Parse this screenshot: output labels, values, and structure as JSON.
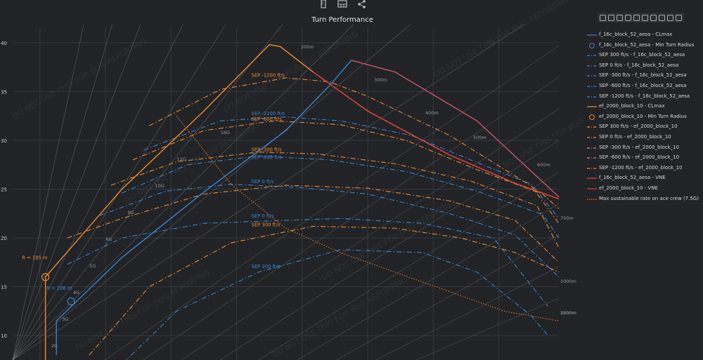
{
  "toolbar": {
    "icons": [
      "ruler-icon",
      "calculator-icon",
      "share-icon"
    ]
  },
  "modebar": {
    "icons": [
      "camera-icon",
      "zoom-icon",
      "pan-icon",
      "box-select-icon",
      "lasso-icon",
      "zoom-in-icon",
      "zoom-out-icon",
      "autoscale-icon",
      "home-icon",
      "plotly-logo-icon"
    ]
  },
  "colors": {
    "background": "#212327",
    "grid": "#34373c",
    "f16": "#3d83c8",
    "ef2000": "#f08a2c",
    "f16_vne": "#cf4a5a",
    "ef_vne": "#e0393e",
    "max_rate": "#e0782a",
    "iso": "#8a8c90"
  },
  "watermark": "DO NOT USE THIS FOR BUG REPORTING",
  "chart_data": {
    "type": "line",
    "title": "Turn Performance",
    "xlabel": "",
    "ylabel": "",
    "ylim": [
      7.5,
      41.5
    ],
    "yticks": [
      10,
      15,
      20,
      25,
      30,
      35,
      40
    ],
    "grid": true,
    "legend_position": "right",
    "g_lines": [
      "2G",
      "3G",
      "4G",
      "5G",
      "6G",
      "8G",
      "10G",
      "12G",
      "16G"
    ],
    "radius_lines": [
      "200m",
      "300m",
      "400m",
      "500m",
      "600m",
      "750m",
      "1000m",
      "1500m",
      "2000m"
    ],
    "annotations": [
      {
        "text": "R = 185 m",
        "series": "ef2000",
        "x": 0.035,
        "y": 17.8
      },
      {
        "text": "R = 286 m",
        "series": "f16",
        "x": 0.08,
        "y": 14.7
      },
      {
        "text": "SEP -1200 ft/s",
        "series": "ef2000",
        "x": 0.455,
        "y": 36.5
      },
      {
        "text": "SEP -1200 ft/s",
        "series": "f16",
        "x": 0.455,
        "y": 32.6
      },
      {
        "text": "SEP -600 ft/s",
        "series": "ef2000",
        "x": 0.455,
        "y": 32.0
      },
      {
        "text": "SEP -300 ft/s",
        "series": "ef2000",
        "x": 0.455,
        "y": 28.9
      },
      {
        "text": "SEP -600 ft/s",
        "series": "f16",
        "x": 0.455,
        "y": 28.1
      },
      {
        "text": "SEP 0 ft/s",
        "series": "f16",
        "x": 0.455,
        "y": 25.6
      },
      {
        "text": "SEP 0 ft/s",
        "series": "f16",
        "x": 0.455,
        "y": 22.1
      },
      {
        "text": "SEP 300 ft/s",
        "series": "ef2000",
        "x": 0.455,
        "y": 21.2
      },
      {
        "text": "SEP 300 ft/s",
        "series": "f16",
        "x": 0.455,
        "y": 16.9
      }
    ],
    "series": [
      {
        "name": "f_16c_block_52_aesa - CLmax",
        "style": "solid",
        "color": "#3d83c8",
        "x": [
          0.08,
          0.08,
          0.2,
          0.35,
          0.5,
          0.58,
          0.62,
          0.7,
          0.85,
          1
        ],
        "y": [
          8,
          11.5,
          18,
          24.7,
          31,
          35.6,
          38.2,
          37,
          32,
          24.2
        ]
      },
      {
        "name": "f_16c_block_52_aesa - Min Turn Radius",
        "style": "marker",
        "color": "#3d83c8",
        "x": [
          0.107
        ],
        "y": [
          13.5
        ]
      },
      {
        "name": "SEP 300 ft/s - f_16c_block_52_aesa",
        "style": "dashdot",
        "color": "#3d83c8",
        "x": [
          0.19,
          0.3,
          0.45,
          0.6,
          0.75,
          0.85,
          0.95,
          0.98
        ],
        "y": [
          6.5,
          12.5,
          16.5,
          18.8,
          18.5,
          16.5,
          12,
          10
        ]
      },
      {
        "name": "SEP 0 ft/s - f_16c_block_52_aesa",
        "style": "dashdot",
        "color": "#3d83c8",
        "x": [
          0.1,
          0.2,
          0.35,
          0.5,
          0.6,
          0.75,
          0.88,
          0.98
        ],
        "y": [
          17.3,
          20,
          21.5,
          21.8,
          22,
          21.5,
          20,
          13
        ]
      },
      {
        "name": "SEP -300 ft/s - f_16c_block_52_aesa",
        "style": "dashdot",
        "color": "#3d83c8",
        "x": [
          0.16,
          0.28,
          0.4,
          0.52,
          0.65,
          0.8,
          0.92,
          1
        ],
        "y": [
          22.3,
          24.8,
          25.5,
          25.2,
          24.5,
          22.5,
          20.3,
          16
        ]
      },
      {
        "name": "SEP -600 ft/s - f_16c_block_52_aesa",
        "style": "dashdot",
        "color": "#3d83c8",
        "x": [
          0.2,
          0.32,
          0.45,
          0.58,
          0.72,
          0.85,
          0.97,
          1
        ],
        "y": [
          24.6,
          27.5,
          28.4,
          28,
          26.8,
          24.8,
          22.4,
          20
        ]
      },
      {
        "name": "SEP -1200 ft/s - f_16c_block_52_aesa",
        "style": "dashdot",
        "color": "#3d83c8",
        "x": [
          0.24,
          0.38,
          0.5,
          0.6,
          0.73,
          0.86,
          0.95,
          1
        ],
        "y": [
          29,
          32,
          32.4,
          32,
          30.5,
          27.5,
          25.5,
          22
        ]
      },
      {
        "name": "ef_2000_block_10 - CLmax",
        "style": "solid",
        "color": "#f08a2c",
        "x": [
          0.06,
          0.06,
          0.2,
          0.35,
          0.47,
          0.49,
          0.55,
          0.65,
          0.8,
          0.92,
          1
        ],
        "y": [
          7,
          16,
          25,
          33,
          39.8,
          39.6,
          37,
          33,
          28.5,
          25.6,
          24
        ]
      },
      {
        "name": "ef_2000_block_10 - Min Turn Radius",
        "style": "marker",
        "color": "#f08a2c",
        "x": [
          0.06
        ],
        "y": [
          16
        ]
      },
      {
        "name": "SEP 300 ft/s - ef_2000_block_10",
        "style": "dashdot",
        "color": "#f08a2c",
        "x": [
          0.14,
          0.25,
          0.4,
          0.55,
          0.7,
          0.82,
          0.92,
          1
        ],
        "y": [
          8,
          15,
          19.5,
          21.2,
          21,
          20,
          18.5,
          16.5
        ]
      },
      {
        "name": "SEP 0 ft/s - ef_2000_block_10",
        "style": "dashdot",
        "color": "#f08a2c",
        "x": [
          0.1,
          0.2,
          0.35,
          0.5,
          0.65,
          0.8,
          0.92,
          1
        ],
        "y": [
          20,
          22,
          24.5,
          25.4,
          25.1,
          23.8,
          21.8,
          17.5
        ]
      },
      {
        "name": "SEP -300 ft/s - ef_2000_block_10",
        "style": "dashdot",
        "color": "#f08a2c",
        "x": [
          0.18,
          0.3,
          0.45,
          0.56,
          0.7,
          0.84,
          0.96,
          1
        ],
        "y": [
          25.4,
          27.8,
          28.8,
          28.6,
          27.6,
          25.8,
          23.3,
          19
        ]
      },
      {
        "name": "SEP -600 ft/s - ef_2000_block_10",
        "style": "dashdot",
        "color": "#f08a2c",
        "x": [
          0.22,
          0.35,
          0.48,
          0.6,
          0.72,
          0.85,
          0.97,
          1
        ],
        "y": [
          28,
          31,
          32,
          31.6,
          30,
          27,
          24.5,
          23
        ]
      },
      {
        "name": "SEP -1200 ft/s - ef_2000_block_10",
        "style": "dashdot",
        "color": "#f08a2c",
        "x": [
          0.25,
          0.38,
          0.5,
          0.58,
          0.65,
          0.8,
          0.95,
          1
        ],
        "y": [
          31.5,
          35.2,
          36.4,
          36,
          34.5,
          30.5,
          25.3,
          21.5
        ]
      },
      {
        "name": "f_16c_block_52_aesa - VNE",
        "style": "solid",
        "color": "#cf4a5a",
        "x": [
          0.62,
          0.7,
          0.85,
          1
        ],
        "y": [
          38.2,
          37,
          32,
          24.2
        ]
      },
      {
        "name": "ef_2000_block_10 - VNE",
        "style": "solid",
        "color": "#e0393e",
        "x": [
          0.55,
          0.65,
          0.8,
          0.92,
          1
        ],
        "y": [
          37,
          33,
          28.5,
          25.6,
          24
        ]
      },
      {
        "name": "Max sustainable rate on ace crew (7.5G)",
        "style": "dotted",
        "color": "#e0782a",
        "x": [
          0.3,
          0.4,
          0.5,
          0.6,
          0.7,
          0.8,
          0.9,
          1
        ],
        "y": [
          32.5,
          25.5,
          21,
          18.5,
          16.5,
          14.5,
          12.5,
          11.5
        ]
      }
    ]
  }
}
